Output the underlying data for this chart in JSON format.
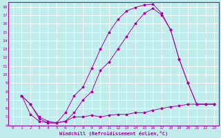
{
  "title": "",
  "xlabel": "Windchill (Refroidissement éolien,°C)",
  "bg_color": "#c0ecec",
  "grid_color": "#ffffff",
  "line_color": "#aa00aa",
  "xlim": [
    -0.5,
    23.5
  ],
  "ylim": [
    4,
    18.5
  ],
  "xticks": [
    0,
    1,
    2,
    3,
    4,
    5,
    6,
    7,
    8,
    9,
    10,
    11,
    12,
    13,
    14,
    15,
    16,
    17,
    18,
    19,
    20,
    21,
    22,
    23
  ],
  "yticks": [
    4,
    5,
    6,
    7,
    8,
    9,
    10,
    11,
    12,
    13,
    14,
    15,
    16,
    17,
    18
  ],
  "curve1_x": [
    1,
    2,
    3,
    4,
    5,
    6,
    7,
    8,
    9,
    10,
    11,
    12,
    13,
    14,
    15,
    16,
    17,
    18,
    19,
    20,
    21,
    22,
    23
  ],
  "curve1_y": [
    7.5,
    6.5,
    5.0,
    4.5,
    4.3,
    5.5,
    7.5,
    8.5,
    10.7,
    13.0,
    15.0,
    16.5,
    17.5,
    17.9,
    18.2,
    18.3,
    17.2,
    15.3,
    11.8,
    9.0,
    6.5,
    6.5,
    6.5
  ],
  "curve2_x": [
    1,
    2,
    3,
    4,
    5,
    6,
    7,
    8,
    9,
    10,
    11,
    12,
    13,
    14,
    15,
    16,
    17,
    18,
    19,
    20,
    21,
    22,
    23
  ],
  "curve2_y": [
    7.5,
    6.5,
    4.8,
    4.3,
    4.3,
    4.5,
    5.5,
    7.0,
    8.0,
    10.5,
    11.5,
    13.0,
    14.5,
    16.0,
    17.2,
    17.8,
    17.0,
    15.3,
    11.8,
    9.0,
    6.5,
    6.5,
    6.5
  ],
  "curve3_x": [
    1,
    2,
    3,
    4,
    5,
    6,
    7,
    8,
    9,
    10,
    11,
    12,
    13,
    14,
    15,
    16,
    17,
    18,
    19,
    20,
    21,
    22,
    23
  ],
  "curve3_y": [
    7.5,
    5.3,
    4.5,
    4.3,
    4.3,
    4.5,
    5.0,
    5.0,
    5.2,
    5.0,
    5.2,
    5.3,
    5.3,
    5.5,
    5.5,
    5.8,
    6.0,
    6.2,
    6.3,
    6.5,
    6.5,
    6.5,
    6.5
  ]
}
